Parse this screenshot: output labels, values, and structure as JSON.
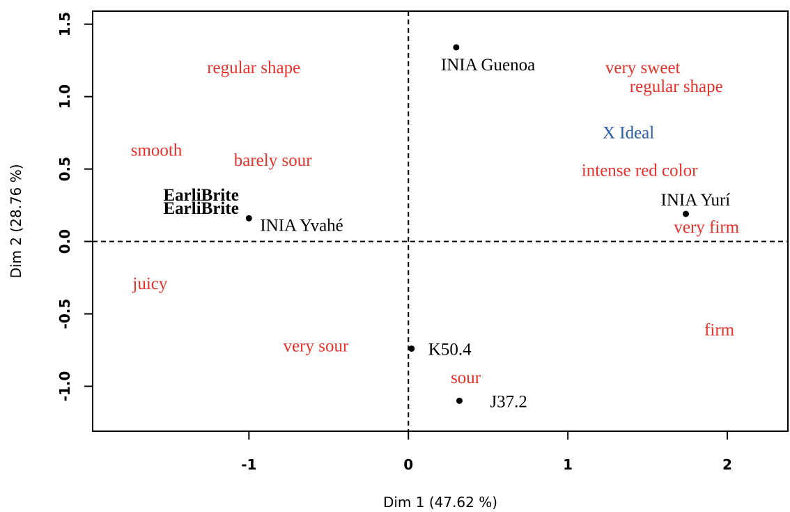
{
  "chart_data": {
    "type": "scatter",
    "title": "",
    "xlabel": "Dim 1 (47.62 %)",
    "ylabel": "Dim 2 (28.76 %)",
    "xlim": [
      -1.98,
      2.38
    ],
    "ylim": [
      -1.31,
      1.59
    ],
    "xticks": [
      -1,
      0,
      1,
      2
    ],
    "yticks": [
      -1.0,
      -0.5,
      0.0,
      0.5,
      1.0,
      1.5
    ],
    "xtick_labels": [
      "-1",
      "0",
      "1",
      "2"
    ],
    "ytick_labels": [
      "-1.0",
      "-0.5",
      "0.0",
      "0.5",
      "1.0",
      "1.5"
    ],
    "reference_lines": {
      "x": 0,
      "y": 0,
      "style": "dashed"
    },
    "grid": false,
    "series": [
      {
        "name": "",
        "color": "#000000",
        "marker": "dot",
        "points": [
          {
            "label": "INIA Guenoa",
            "x": 0.3,
            "y": 1.34
          },
          {
            "label": "INIA Yurí",
            "x": 1.74,
            "y": 0.19
          },
          {
            "label": "INIA Yvahé",
            "x": -1.0,
            "y": 0.16
          },
          {
            "label": "K50.4",
            "x": 0.02,
            "y": -0.74
          },
          {
            "label": "J37.2",
            "x": 0.32,
            "y": -1.1
          }
        ]
      },
      {
        "name": "",
        "color": "#e8312b",
        "marker": "none",
        "points": [
          {
            "label": "regular shape",
            "x": -0.97,
            "y": 1.2
          },
          {
            "label": "very sweet",
            "x": 1.47,
            "y": 1.2
          },
          {
            "label": "regular shape",
            "x": 1.68,
            "y": 1.07
          },
          {
            "label": "smooth",
            "x": -1.58,
            "y": 0.63
          },
          {
            "label": "barely sour",
            "x": -0.85,
            "y": 0.56
          },
          {
            "label": "intense red color",
            "x": 1.45,
            "y": 0.49
          },
          {
            "label": "very firm",
            "x": 1.87,
            "y": 0.1
          },
          {
            "label": "juicy",
            "x": -1.62,
            "y": -0.29
          },
          {
            "label": "very sour",
            "x": -0.58,
            "y": -0.72
          },
          {
            "label": "firm",
            "x": 1.95,
            "y": -0.61
          },
          {
            "label": "sour",
            "x": 0.36,
            "y": -0.94
          }
        ]
      },
      {
        "name": "",
        "color": "#2a5ca8",
        "marker": "none",
        "points": [
          {
            "label": "X  Ideal",
            "x": 1.38,
            "y": 0.75
          }
        ]
      }
    ],
    "extra_labels": [
      {
        "label": "EarliBrite",
        "x": -1.3,
        "y": 0.23,
        "color": "#000000"
      }
    ]
  }
}
